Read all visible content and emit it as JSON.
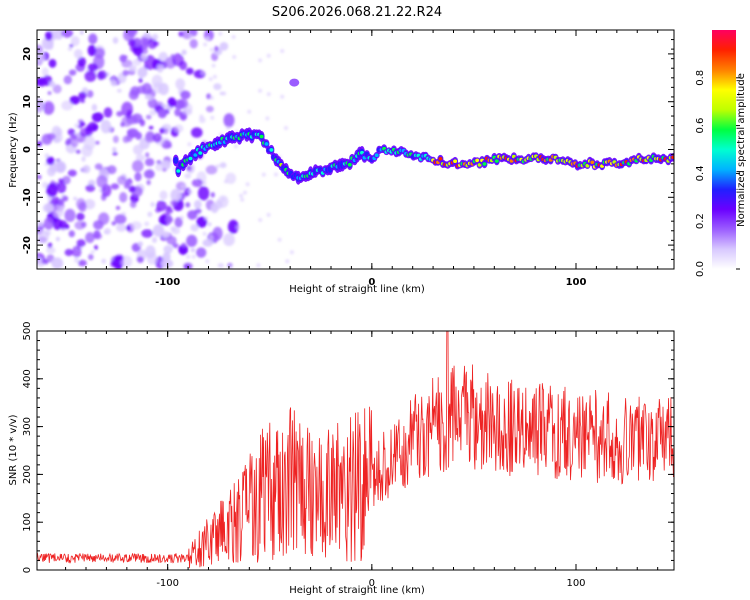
{
  "title": "S206.2026.068.21.22.R24",
  "chart_data": [
    {
      "type": "heatmap",
      "name": "spectrogram",
      "xlabel": "Height of straight line (km)",
      "ylabel": "Frequency (Hz)",
      "xlim": [
        -164,
        148
      ],
      "ylim": [
        -25,
        25
      ],
      "xticks": [
        -100,
        0,
        100
      ],
      "yticks": [
        -20,
        -10,
        0,
        10,
        20
      ],
      "colorbar": {
        "label": "Normalized spectral amplitude",
        "range": [
          0,
          1
        ],
        "ticks": [
          "0.0",
          "0.2",
          "0.4",
          "0.6",
          "0.8"
        ],
        "colormap": [
          "#ffffff",
          "#d8c8ff",
          "#9b5cff",
          "#6a00ff",
          "#2020ff",
          "#00b4ff",
          "#00ffd0",
          "#00ff40",
          "#c0ff00",
          "#ffff00",
          "#ff8000",
          "#ff2000",
          "#ff0060"
        ]
      },
      "ridge": {
        "description_points_km_hz": [
          [
            -95,
            -4
          ],
          [
            -90,
            -2
          ],
          [
            -80,
            1
          ],
          [
            -70,
            2
          ],
          [
            -62,
            3
          ],
          [
            -55,
            3
          ],
          [
            -50,
            0
          ],
          [
            -45,
            -3
          ],
          [
            -38,
            -6
          ],
          [
            -30,
            -5
          ],
          [
            -20,
            -4
          ],
          [
            -12,
            -3
          ],
          [
            -5,
            -1
          ],
          [
            0,
            -2
          ],
          [
            5,
            0
          ],
          [
            10,
            0
          ],
          [
            20,
            -1
          ],
          [
            30,
            -2
          ],
          [
            40,
            -3
          ],
          [
            50,
            -3
          ],
          [
            60,
            -2
          ],
          [
            70,
            -2
          ],
          [
            80,
            -2
          ],
          [
            90,
            -2
          ],
          [
            100,
            -3
          ],
          [
            110,
            -3
          ],
          [
            120,
            -3
          ],
          [
            130,
            -2
          ],
          [
            140,
            -2
          ],
          [
            148,
            -2
          ]
        ]
      },
      "noise_region_km": [
        -164,
        -95
      ]
    },
    {
      "type": "line",
      "name": "snr",
      "xlabel": "Height of straight line (km)",
      "ylabel": "SNR (10 * v/v)",
      "xlim": [
        -164,
        148
      ],
      "ylim": [
        0,
        500
      ],
      "xticks": [
        -100,
        0,
        100
      ],
      "yticks": [
        0,
        100,
        200,
        300,
        400,
        500
      ],
      "color": "#ee2222",
      "envelope_km_snr": [
        [
          -164,
          20
        ],
        [
          -110,
          20
        ],
        [
          -90,
          25
        ],
        [
          -80,
          60
        ],
        [
          -70,
          90
        ],
        [
          -60,
          130
        ],
        [
          -50,
          170
        ],
        [
          -40,
          180
        ],
        [
          -30,
          170
        ],
        [
          -20,
          160
        ],
        [
          -10,
          170
        ],
        [
          0,
          190
        ],
        [
          10,
          240
        ],
        [
          20,
          270
        ],
        [
          30,
          300
        ],
        [
          40,
          320
        ],
        [
          50,
          320
        ],
        [
          60,
          305
        ],
        [
          80,
          295
        ],
        [
          100,
          285
        ],
        [
          120,
          275
        ],
        [
          148,
          270
        ]
      ],
      "peak": {
        "x_km": 37,
        "snr": 500
      }
    }
  ]
}
